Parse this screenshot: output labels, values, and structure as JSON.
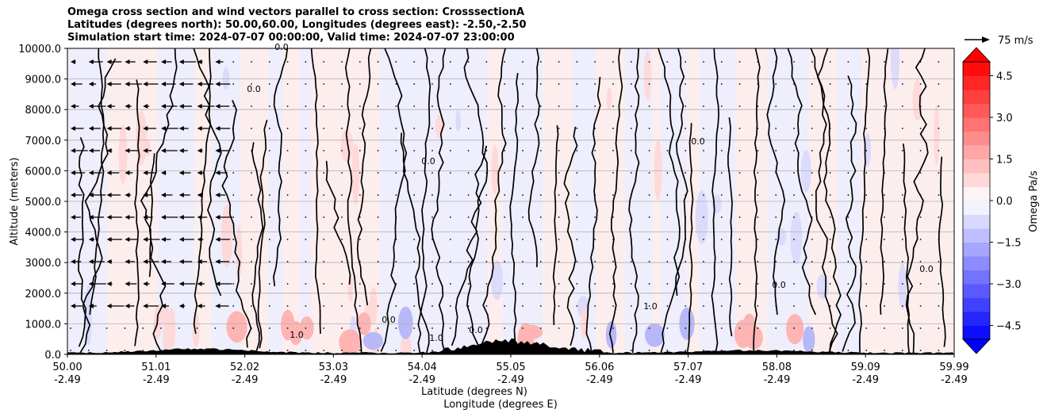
{
  "chart_data": {
    "type": "heatmap",
    "title_lines": [
      "Omega cross section and wind vectors parallel to cross section: CrosssectionA",
      "Latitudes (degrees north): 50.00,60.00, Longitudes (degrees east): -2.50,-2.50",
      "Simulation start time: 2024-07-07 00:00:00, Valid time: 2024-07-07 23:00:00"
    ],
    "ylabel": "Altitude (meters)",
    "xlabel_lat": "Latitude (degrees N)",
    "xlabel_lon": "Longitude (degrees E)",
    "ylim": [
      0,
      10000
    ],
    "y_ticks": [
      "0.0",
      "1000.0",
      "2000.0",
      "3000.0",
      "4000.0",
      "5000.0",
      "6000.0",
      "7000.0",
      "8000.0",
      "9000.0",
      "10000.0"
    ],
    "x_ticks_lat": [
      "50.00",
      "51.01",
      "52.02",
      "53.03",
      "54.04",
      "55.05",
      "56.06",
      "57.07",
      "58.08",
      "59.09",
      "59.99"
    ],
    "x_ticks_lon": [
      "-2.49",
      "-2.49",
      "-2.49",
      "-2.49",
      "-2.49",
      "-2.49",
      "-2.49",
      "-2.49",
      "-2.49",
      "-2.49",
      "-2.49"
    ],
    "colorbar": {
      "label": "Omega Pa/s",
      "range": [
        -5,
        5
      ],
      "ticks": [
        "4.5",
        "3.0",
        "1.5",
        "0.0",
        "−1.5",
        "−3.0",
        "−4.5"
      ],
      "tick_values": [
        4.5,
        3.0,
        1.5,
        0.0,
        -1.5,
        -3.0,
        -4.5
      ],
      "neg_color": "#0000ff",
      "pos_color": "#ff0000"
    },
    "quiver_key": "75 m/s",
    "contour_labels": [
      "0.0",
      "0.0",
      "0.0",
      "0.0",
      "0.0",
      "1.0",
      "1.0",
      "0.0",
      "0.0",
      "1.0",
      "0.0"
    ],
    "contour_level": 0.0
  }
}
